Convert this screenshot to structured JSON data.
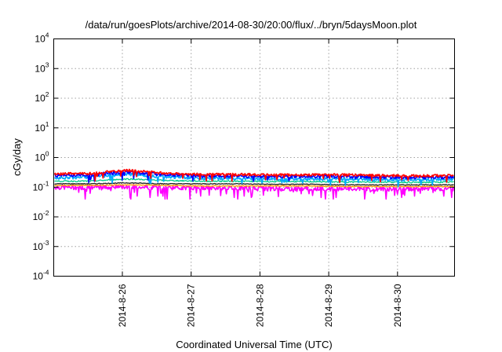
{
  "chart_data": {
    "type": "line",
    "title": "/data/run/goesPlots/archive/2014-08-30/20:00/flux/../bryn/5daysMoon.plot",
    "xlabel": "Coordinated Universal Time (UTC)",
    "ylabel": "cGy/day",
    "y_scale": "log",
    "ylim": [
      0.0001,
      10000
    ],
    "y_ticks": [
      {
        "base": "10",
        "exp": "-4",
        "value": 0.0001
      },
      {
        "base": "10",
        "exp": "-3",
        "value": 0.001
      },
      {
        "base": "10",
        "exp": "-2",
        "value": 0.01
      },
      {
        "base": "10",
        "exp": "-1",
        "value": 0.1
      },
      {
        "base": "10",
        "exp": "0",
        "value": 1
      },
      {
        "base": "10",
        "exp": "1",
        "value": 10
      },
      {
        "base": "10",
        "exp": "2",
        "value": 100
      },
      {
        "base": "10",
        "exp": "3",
        "value": 1000
      },
      {
        "base": "10",
        "exp": "4",
        "value": 10000
      }
    ],
    "x_range_days": [
      "2014-08-25 04:00",
      "2014-08-30 20:00"
    ],
    "x_ticks": [
      "2014-8-26",
      "2014-8-27",
      "2014-8-28",
      "2014-8-29",
      "2014-8-30"
    ],
    "grid": true,
    "series": [
      {
        "color": "#ff0000",
        "base": [
          0.28,
          0.29,
          0.37,
          0.3,
          0.27,
          0.27,
          0.26,
          0.26,
          0.26,
          0.25,
          0.24,
          0.25
        ],
        "noise": 0.1
      },
      {
        "color": "#0000ff",
        "base": [
          0.25,
          0.26,
          0.33,
          0.27,
          0.24,
          0.24,
          0.23,
          0.23,
          0.23,
          0.22,
          0.21,
          0.22
        ],
        "noise": 0.12
      },
      {
        "color": "#00aaff",
        "base": [
          0.21,
          0.22,
          0.28,
          0.23,
          0.2,
          0.2,
          0.19,
          0.19,
          0.19,
          0.18,
          0.18,
          0.19
        ],
        "noise": 0.12
      },
      {
        "color": "#00cc88",
        "base": [
          0.16,
          0.16,
          0.19,
          0.17,
          0.16,
          0.16,
          0.155,
          0.155,
          0.15,
          0.15,
          0.145,
          0.15
        ],
        "noise": 0.05
      },
      {
        "color": "#222222",
        "base": [
          0.13,
          0.13,
          0.14,
          0.13,
          0.13,
          0.13,
          0.125,
          0.125,
          0.12,
          0.12,
          0.12,
          0.12
        ],
        "noise": 0.03
      },
      {
        "color": "#ff9900",
        "base": [
          0.115,
          0.115,
          0.12,
          0.115,
          0.11,
          0.11,
          0.11,
          0.11,
          0.105,
          0.105,
          0.105,
          0.105
        ],
        "noise": 0.03
      },
      {
        "color": "#ff00ff",
        "base": [
          0.1,
          0.1,
          0.105,
          0.1,
          0.095,
          0.095,
          0.09,
          0.09,
          0.09,
          0.088,
          0.088,
          0.09
        ],
        "noise": 0.18,
        "dips": [
          0.04,
          0.05,
          0.045,
          0.04,
          0.06,
          0.05
        ]
      }
    ]
  }
}
